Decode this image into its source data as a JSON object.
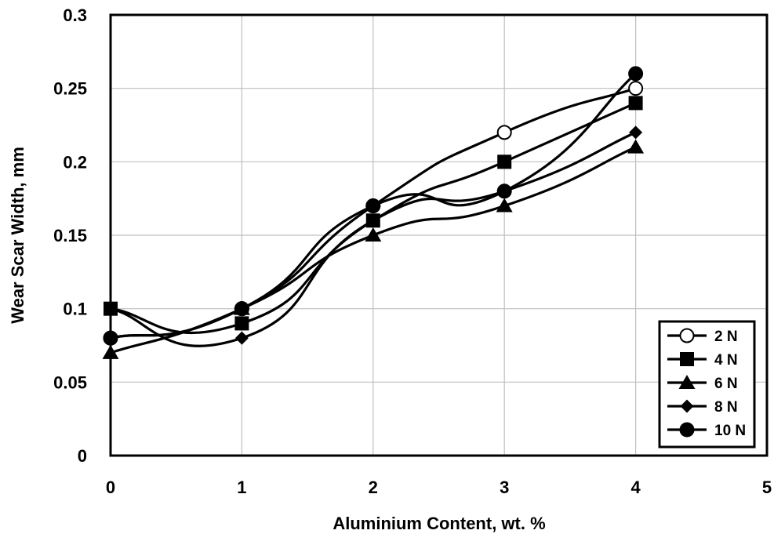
{
  "chart_data": {
    "type": "line",
    "title": "",
    "xlabel": "Aluminium  Content, wt. %",
    "ylabel": "Wear Scar Width, mm",
    "xlim": [
      0,
      5
    ],
    "ylim": [
      0,
      0.3
    ],
    "x_ticks": [
      "0",
      "1",
      "2",
      "3",
      "4",
      "5"
    ],
    "y_ticks": [
      "0",
      "0.05",
      "0.1",
      "0.15",
      "0.2",
      "0.25",
      "0.3"
    ],
    "grid": true,
    "smooth": true,
    "legend_position": "bottom-right",
    "x": [
      0,
      1,
      2,
      3,
      4
    ],
    "series": [
      {
        "name": "2 N",
        "marker": "open-circle",
        "values": [
          0.08,
          0.1,
          0.17,
          0.22,
          0.25
        ]
      },
      {
        "name": "4 N",
        "marker": "square",
        "values": [
          0.1,
          0.09,
          0.16,
          0.2,
          0.24
        ]
      },
      {
        "name": "6 N",
        "marker": "triangle",
        "values": [
          0.07,
          0.1,
          0.15,
          0.17,
          0.21
        ]
      },
      {
        "name": "8 N",
        "marker": "diamond",
        "values": [
          0.1,
          0.08,
          0.16,
          0.18,
          0.22
        ]
      },
      {
        "name": "10 N",
        "marker": "circle",
        "values": [
          0.08,
          0.1,
          0.17,
          0.18,
          0.26
        ]
      }
    ],
    "colors": {
      "line": "#000000",
      "grid": "#bfbfbf",
      "background": "#ffffff"
    }
  }
}
